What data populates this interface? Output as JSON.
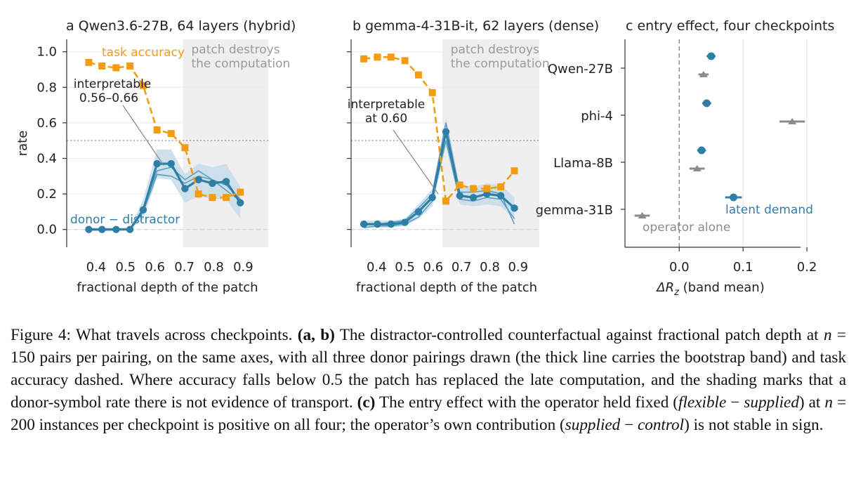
{
  "colors": {
    "orange": "#f39c12",
    "blue": "#2e7ea6",
    "blue_band": "#c6dcea",
    "blue_thin": "#5c9ec4",
    "gray": "#8c8c8c",
    "shade": "#efefef"
  },
  "chart_data": [
    {
      "type": "line",
      "panel_letter": "a",
      "title": "Qwen3.6-27B, 64 layers (hybrid)",
      "xlabel": "fractional depth of the patch",
      "ylabel": "rate",
      "xlim": [
        0.3,
        0.985
      ],
      "ylim": [
        -0.1,
        1.07
      ],
      "xticks": [
        0.4,
        0.5,
        0.6,
        0.7,
        0.8,
        0.9
      ],
      "yticks": [
        0.0,
        0.2,
        0.4,
        0.6,
        0.8,
        1.0
      ],
      "reference_line": 0.5,
      "shaded_region": {
        "from": 0.695,
        "to": 0.985,
        "label": [
          "patch destroys",
          "the computation"
        ]
      },
      "series": [
        {
          "name": "task accuracy",
          "style": "dashed-square",
          "x": [
            0.375,
            0.42,
            0.468,
            0.515,
            0.56,
            0.607,
            0.655,
            0.702,
            0.748,
            0.795,
            0.842,
            0.89
          ],
          "values": [
            0.94,
            0.92,
            0.91,
            0.92,
            0.81,
            0.56,
            0.54,
            0.46,
            0.2,
            0.18,
            0.18,
            0.21
          ]
        },
        {
          "name": "donor − distractor",
          "style": "thick-circle",
          "x": [
            0.375,
            0.42,
            0.468,
            0.515,
            0.56,
            0.607,
            0.655,
            0.702,
            0.748,
            0.795,
            0.842,
            0.89
          ],
          "values": [
            0.0,
            0.0,
            0.0,
            0.0,
            0.11,
            0.37,
            0.37,
            0.23,
            0.28,
            0.26,
            0.27,
            0.15
          ],
          "band_low": [
            -0.01,
            -0.01,
            -0.01,
            0.0,
            0.06,
            0.29,
            0.28,
            0.15,
            0.19,
            0.17,
            0.17,
            0.06
          ],
          "band_high": [
            0.01,
            0.01,
            0.01,
            0.01,
            0.17,
            0.45,
            0.45,
            0.31,
            0.37,
            0.35,
            0.37,
            0.24
          ],
          "thin_lines": [
            [
              0.0,
              0.0,
              0.0,
              0.0,
              0.12,
              0.33,
              0.35,
              0.28,
              0.33,
              0.28,
              0.25,
              0.17
            ],
            [
              0.0,
              0.0,
              0.0,
              0.0,
              0.1,
              0.31,
              0.3,
              0.26,
              0.3,
              0.28,
              0.22,
              0.16
            ]
          ]
        }
      ],
      "annotation": {
        "text": [
          "interpretable",
          "0.56–0.66"
        ],
        "points_to": [
          0.63,
          0.36
        ]
      }
    },
    {
      "type": "line",
      "panel_letter": "b",
      "title": "gemma-4-31B-it, 62 layers (dense)",
      "xlabel": "fractional depth of the patch",
      "xlim": [
        0.31,
        0.975
      ],
      "ylim": [
        -0.1,
        1.07
      ],
      "xticks": [
        0.4,
        0.5,
        0.6,
        0.7,
        0.8,
        0.9
      ],
      "yticks": [
        0.0,
        0.2,
        0.4,
        0.6,
        0.8,
        1.0
      ],
      "reference_line": 0.5,
      "shaded_region": {
        "from": 0.632,
        "to": 0.975,
        "label": [
          "patch destroys",
          "the computation"
        ]
      },
      "series": [
        {
          "name": "task accuracy",
          "style": "dashed-square",
          "x": [
            0.355,
            0.403,
            0.451,
            0.5,
            0.548,
            0.597,
            0.645,
            0.694,
            0.742,
            0.79,
            0.839,
            0.887
          ],
          "values": [
            0.96,
            0.97,
            0.97,
            0.95,
            0.87,
            0.77,
            0.16,
            0.25,
            0.23,
            0.23,
            0.24,
            0.33
          ]
        },
        {
          "name": "donor − distractor",
          "style": "thick-circle",
          "x": [
            0.355,
            0.403,
            0.451,
            0.5,
            0.548,
            0.597,
            0.645,
            0.694,
            0.742,
            0.79,
            0.839,
            0.887
          ],
          "values": [
            0.03,
            0.03,
            0.03,
            0.04,
            0.1,
            0.18,
            0.55,
            0.19,
            0.18,
            0.2,
            0.19,
            0.12
          ],
          "band_low": [
            0.01,
            0.01,
            0.01,
            0.02,
            0.06,
            0.13,
            0.47,
            0.14,
            0.13,
            0.14,
            0.13,
            0.06
          ],
          "band_high": [
            0.05,
            0.05,
            0.05,
            0.06,
            0.14,
            0.23,
            0.63,
            0.25,
            0.24,
            0.26,
            0.25,
            0.18
          ],
          "thin_lines": [
            [
              0.03,
              0.03,
              0.04,
              0.05,
              0.12,
              0.2,
              0.6,
              0.21,
              0.21,
              0.22,
              0.2,
              0.03
            ],
            [
              0.01,
              0.02,
              0.02,
              0.03,
              0.07,
              0.16,
              0.5,
              0.17,
              0.16,
              0.18,
              0.17,
              0.06
            ]
          ]
        }
      ],
      "annotation": {
        "text": [
          "interpretable",
          "at 0.60"
        ],
        "points_to": [
          0.618,
          0.2
        ]
      }
    },
    {
      "type": "scatter",
      "panel_letter": "c",
      "title": "entry effect, four checkpoints",
      "xlabel": "ΔR",
      "xlabel_subscript": "z",
      "xlabel_suffix": " (band mean)",
      "xlim": [
        -0.085,
        0.245
      ],
      "xticks": [
        0.0,
        0.1,
        0.2
      ],
      "categories": [
        "Qwen-27B",
        "phi-4",
        "Llama-8B",
        "gemma-31B"
      ],
      "series": [
        {
          "name": "latent demand",
          "values": [
            0.05,
            0.043,
            0.035,
            0.085
          ],
          "ci_low": [
            0.043,
            0.036,
            0.028,
            0.072
          ],
          "ci_high": [
            0.057,
            0.05,
            0.042,
            0.098
          ]
        },
        {
          "name": "operator alone",
          "values": [
            0.038,
            0.177,
            0.028,
            -0.058
          ],
          "ci_low": [
            0.03,
            0.157,
            0.016,
            -0.07
          ],
          "ci_high": [
            0.046,
            0.197,
            0.04,
            -0.046
          ]
        }
      ]
    }
  ],
  "caption": {
    "label": "Figure 4:",
    "lead": " What travels across checkpoints. ",
    "ab_label": "(a, b)",
    "ab_text_1": " The distractor-controlled counterfactual against fractional patch depth at ",
    "n": "n",
    "eq_150": " = 150",
    "ab_text_2": " pairs per pairing, on the same axes, with all three donor pairings drawn (the thick line carries the bootstrap band) and task accuracy dashed. Where accuracy falls below ",
    "threshold": "0.5",
    "ab_text_3": " the patch has replaced the late computation, and the shading marks that a donor-symbol rate there is not evidence of transport. ",
    "c_label": "(c)",
    "c_text_1": " The entry effect with the operator held fixed (",
    "flexible": "flexible",
    "minus_1": " − ",
    "supplied": "supplied",
    "c_text_2": ") at ",
    "n2": "n",
    "eq_200": " = 200",
    "c_text_3": " instances per checkpoint is positive on all four; the operator’s own contribution (",
    "supplied2": "supplied",
    "minus_2": " − ",
    "control": "control",
    "c_text_4": ") is not stable in sign."
  }
}
